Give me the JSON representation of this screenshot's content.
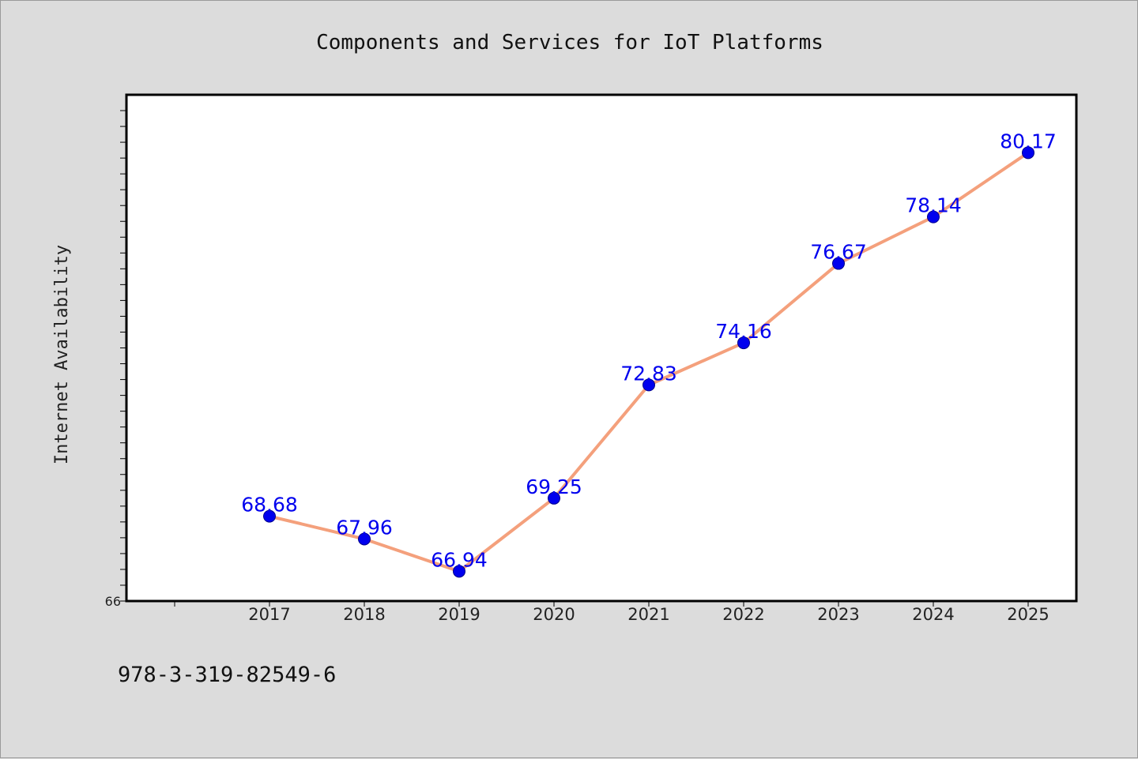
{
  "chart_data": {
    "type": "line",
    "title": "Components and Services for IoT Platforms",
    "xlabel": "",
    "ylabel": "Internet Availability",
    "categories": [
      "2017",
      "2018",
      "2019",
      "2020",
      "2021",
      "2022",
      "2023",
      "2024",
      "2025"
    ],
    "series": [
      {
        "values": [
          68.68,
          67.96,
          66.94,
          69.25,
          72.83,
          74.16,
          76.67,
          78.14,
          80.17
        ],
        "line_color": "#f4a07c",
        "marker_color": "#0000ee"
      }
    ],
    "data_labels": [
      "68.68",
      "67.96",
      "66.94",
      "69.25",
      "72.83",
      "74.16",
      "76.67",
      "78.14",
      "80.17"
    ],
    "ylim": [
      66,
      82
    ],
    "yticks_labeled": [
      "66"
    ],
    "grid": false,
    "legend": "none"
  },
  "footer": {
    "isbn": "978-3-319-82549-6"
  },
  "colors": {
    "background": "#dcdcdc",
    "plot_background": "#ffffff",
    "axis": "#000000",
    "line": "#f4a07c",
    "marker": "#0000ee",
    "data_label": "#0000ee"
  }
}
